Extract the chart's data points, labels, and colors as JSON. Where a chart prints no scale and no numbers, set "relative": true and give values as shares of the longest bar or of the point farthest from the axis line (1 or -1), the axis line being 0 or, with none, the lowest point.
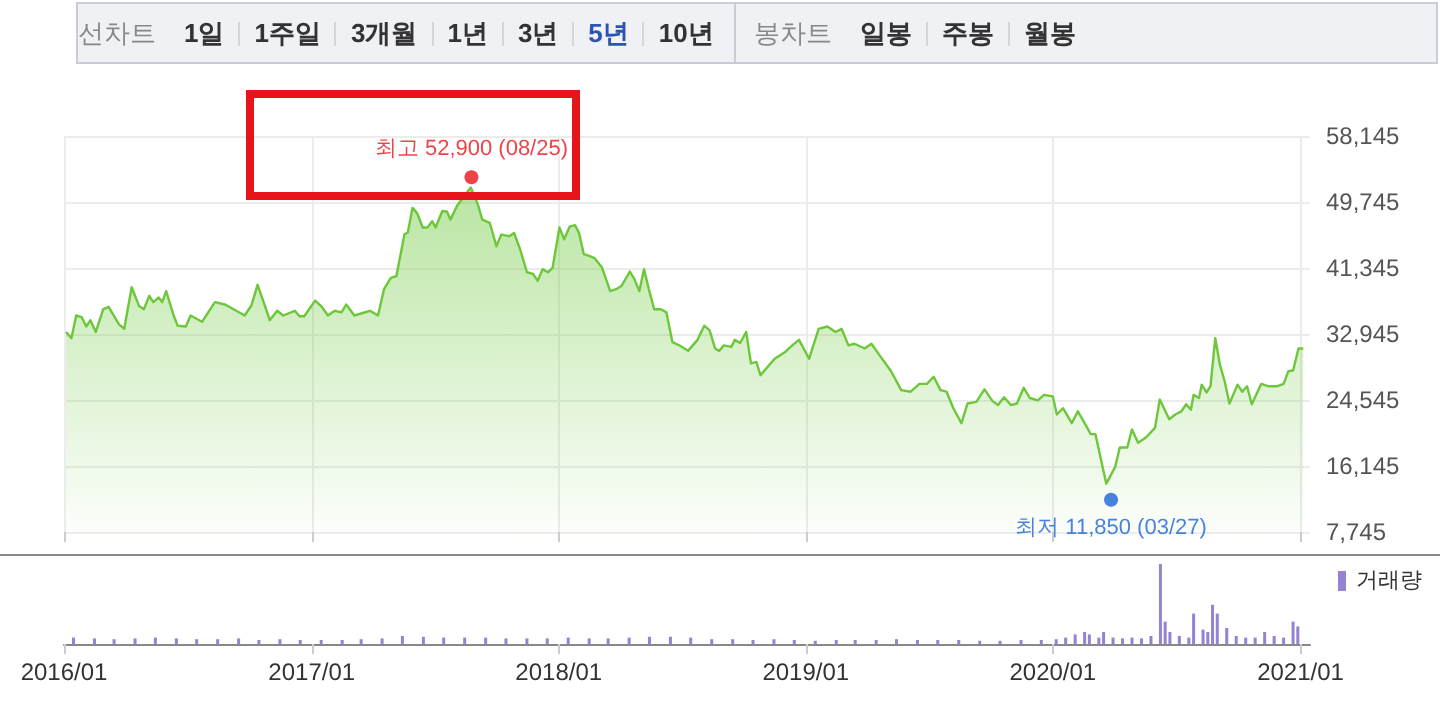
{
  "chart_data": [
    {
      "type": "other",
      "annotations": [
        "선차트",
        "1일",
        "1주일",
        "3개월",
        "1년",
        "3년",
        "5년",
        "10년"
      ],
      "colors": [
        "#888888",
        "#333333",
        "#333333",
        "#333333",
        "#333333",
        "#333333",
        "#2b53b5",
        "#333333"
      ]
    },
    {
      "type": "other",
      "annotations": [
        "봉차트",
        "일봉",
        "주봉",
        "월봉"
      ],
      "colors": [
        "#888888",
        "#333333",
        "#333333",
        "#333333"
      ]
    },
    {
      "type": "area",
      "color": "#6cc83a",
      "grid": true,
      "tick_labels": "y",
      "xlim": [
        "2016-01-01",
        "2021-01-15"
      ],
      "xticks": [
        {
          "value": "2016-01-01",
          "label": null
        },
        {
          "value": "2017-01-01",
          "label": null
        },
        {
          "value": "2018-01-01",
          "label": null
        },
        {
          "value": "2019-01-01",
          "label": null
        },
        {
          "value": "2020-01-01",
          "label": null
        },
        {
          "value": "2021-01-01",
          "label": null
        }
      ],
      "ylim": [
        7745,
        58145
      ],
      "yticks": [
        {
          "value": 7745,
          "label": "7,745"
        },
        {
          "value": 16145,
          "label": "16,145"
        },
        {
          "value": 24545,
          "label": "24,545"
        },
        {
          "value": 32945,
          "label": "32,945"
        },
        {
          "value": 41345,
          "label": "41,345"
        },
        {
          "value": 49745,
          "label": "49,745"
        },
        {
          "value": 58145,
          "label": "58,145"
        }
      ],
      "series": [
        {
          "type": "scatter",
          "x": [
            "2017-08-25",
            "2020-03-27"
          ],
          "values": [
            52900,
            11850
          ],
          "colors": [
            "#e8141c",
            "#1c64d8"
          ],
          "value_labels": [
            "최고 52,900 (08/25)",
            "최저 11,850 (03/27)"
          ]
        }
      ],
      "x": [
        "2016-01-04",
        "2016-01-12",
        "2016-01-19",
        "2016-01-27",
        "2016-02-03",
        "2016-02-09",
        "2016-02-17",
        "2016-02-28",
        "2016-03-07",
        "2016-03-22",
        "2016-03-30",
        "2016-04-10",
        "2016-04-21",
        "2016-04-28",
        "2016-05-06",
        "2016-05-12",
        "2016-05-20",
        "2016-05-25",
        "2016-05-31",
        "2016-06-11",
        "2016-06-17",
        "2016-06-29",
        "2016-07-06",
        "2016-07-23",
        "2016-08-11",
        "2016-08-26",
        "2016-09-24",
        "2016-10-04",
        "2016-10-13",
        "2016-10-22",
        "2016-10-31",
        "2016-11-11",
        "2016-11-20",
        "2016-12-07",
        "2016-12-14",
        "2016-12-21",
        "2017-01-06",
        "2017-01-15",
        "2017-01-25",
        "2017-02-04",
        "2017-02-14",
        "2017-02-21",
        "2017-03-05",
        "2017-03-28",
        "2017-04-09",
        "2017-04-18",
        "2017-04-28",
        "2017-05-06",
        "2017-05-18",
        "2017-05-23",
        "2017-05-30",
        "2017-06-06",
        "2017-06-14",
        "2017-06-21",
        "2017-06-28",
        "2017-07-03",
        "2017-07-13",
        "2017-07-20",
        "2017-07-25",
        "2017-08-04",
        "2017-08-24",
        "2017-08-30",
        "2017-09-04",
        "2017-09-10",
        "2017-09-21",
        "2017-10-01",
        "2017-10-08",
        "2017-10-20",
        "2017-10-27",
        "2017-11-05",
        "2017-11-15",
        "2017-11-24",
        "2017-12-01",
        "2017-12-08",
        "2017-12-16",
        "2017-12-23",
        "2018-01-02",
        "2018-01-09",
        "2018-01-17",
        "2018-01-25",
        "2018-01-31",
        "2018-02-07",
        "2018-02-15",
        "2018-02-23",
        "2018-03-06",
        "2018-03-18",
        "2018-03-28",
        "2018-04-04",
        "2018-04-16",
        "2018-04-23",
        "2018-04-30",
        "2018-05-07",
        "2018-05-14",
        "2018-05-22",
        "2018-06-01",
        "2018-06-09",
        "2018-06-18",
        "2018-06-28",
        "2018-07-11",
        "2018-07-25",
        "2018-08-04",
        "2018-08-12",
        "2018-08-20",
        "2018-08-26",
        "2018-09-02",
        "2018-09-13",
        "2018-09-18",
        "2018-09-26",
        "2018-10-05",
        "2018-10-12",
        "2018-10-20",
        "2018-10-26",
        "2018-11-16",
        "2018-12-02",
        "2018-12-12",
        "2018-12-22",
        "2019-01-06",
        "2019-01-20",
        "2019-02-02",
        "2019-02-14",
        "2019-02-23",
        "2019-03-05",
        "2019-03-14",
        "2019-03-29",
        "2019-04-08",
        "2019-04-22",
        "2019-05-07",
        "2019-05-22",
        "2019-06-05",
        "2019-06-18",
        "2019-06-29",
        "2019-07-09",
        "2019-07-19",
        "2019-07-28",
        "2019-08-07",
        "2019-08-19",
        "2019-08-28",
        "2019-09-10",
        "2019-09-22",
        "2019-10-04",
        "2019-10-12",
        "2019-10-21",
        "2019-10-31",
        "2019-11-09",
        "2019-11-19",
        "2019-11-28",
        "2019-12-10",
        "2019-12-19",
        "2020-01-01",
        "2020-01-07",
        "2020-01-16",
        "2020-01-29",
        "2020-02-07",
        "2020-02-17",
        "2020-02-26",
        "2020-03-04",
        "2020-03-20",
        "2020-04-02",
        "2020-04-09",
        "2020-04-20",
        "2020-04-27",
        "2020-05-06",
        "2020-05-18",
        "2020-05-31",
        "2020-06-07",
        "2020-06-21",
        "2020-06-30",
        "2020-07-09",
        "2020-07-16",
        "2020-07-23",
        "2020-07-27",
        "2020-08-04",
        "2020-08-08",
        "2020-08-15",
        "2020-08-21",
        "2020-08-28",
        "2020-09-04",
        "2020-09-11",
        "2020-09-18",
        "2020-09-30",
        "2020-10-07",
        "2020-10-14",
        "2020-10-21",
        "2020-11-04",
        "2020-11-14",
        "2020-11-28",
        "2020-12-07",
        "2020-12-14",
        "2020-12-21",
        "2020-12-29",
        "2021-01-05"
      ],
      "values": [
        33200,
        32400,
        35300,
        35100,
        33900,
        34700,
        33200,
        36100,
        36400,
        34200,
        33600,
        38900,
        36500,
        36100,
        37800,
        37000,
        37600,
        37000,
        38400,
        35300,
        34000,
        33900,
        35300,
        34500,
        37000,
        36700,
        35300,
        36600,
        39200,
        37000,
        34700,
        35900,
        35300,
        35900,
        35200,
        35200,
        37200,
        36500,
        35300,
        35900,
        35700,
        36700,
        35300,
        35900,
        35300,
        38700,
        40100,
        40300,
        45600,
        45900,
        49000,
        48300,
        46500,
        46500,
        47300,
        46500,
        48600,
        48500,
        47500,
        49300,
        51600,
        50400,
        49300,
        47500,
        47100,
        44100,
        45600,
        45400,
        45800,
        43700,
        40800,
        40600,
        39700,
        41200,
        40800,
        41400,
        46500,
        45000,
        46600,
        46800,
        45800,
        43100,
        42900,
        42600,
        41400,
        38400,
        38700,
        39100,
        40900,
        39900,
        38400,
        41200,
        38700,
        36100,
        36100,
        35700,
        31900,
        31500,
        30800,
        32200,
        34000,
        33400,
        31100,
        30800,
        31500,
        31300,
        32200,
        31800,
        33200,
        29200,
        29400,
        27700,
        29800,
        30700,
        31500,
        32200,
        29800,
        33600,
        33900,
        33200,
        33600,
        31500,
        31700,
        31100,
        31700,
        30000,
        28200,
        25800,
        25600,
        26600,
        26600,
        27500,
        25800,
        25600,
        23500,
        21600,
        24100,
        24300,
        25900,
        24400,
        23900,
        24900,
        23900,
        24100,
        26100,
        24800,
        24500,
        25200,
        25000,
        22700,
        23500,
        21600,
        23100,
        21600,
        20200,
        20200,
        13900,
        16000,
        18500,
        18500,
        20800,
        19100,
        19800,
        21000,
        24600,
        22100,
        22700,
        23100,
        24000,
        23300,
        25200,
        24800,
        26500,
        25500,
        26300,
        32400,
        29000,
        26900,
        24100,
        26500,
        25600,
        26300,
        24000,
        26600,
        26300,
        26300,
        26600,
        28200,
        28300,
        31100,
        31100
      ]
    },
    {
      "type": "bar",
      "relative": true,
      "tick_labels": "x",
      "legend": "top right",
      "xlim": [
        "2016-01-01",
        "2021-01-15"
      ],
      "xticks": [
        {
          "value": "2016-01-01",
          "label": "2016/01"
        },
        {
          "value": "2017-01-01",
          "label": "2017/01"
        },
        {
          "value": "2018-01-01",
          "label": "2018/01"
        },
        {
          "value": "2019-01-01",
          "label": "2019/01"
        },
        {
          "value": "2020-01-01",
          "label": "2020/01"
        },
        {
          "value": "2021-01-01",
          "label": "2021/01"
        }
      ],
      "x": [
        "2016-01-15",
        "2016-02-15",
        "2016-03-15",
        "2016-04-15",
        "2016-05-15",
        "2016-06-15",
        "2016-07-15",
        "2016-08-15",
        "2016-09-15",
        "2016-10-15",
        "2016-11-15",
        "2016-12-15",
        "2017-01-15",
        "2017-02-15",
        "2017-03-15",
        "2017-04-15",
        "2017-05-15",
        "2017-06-15",
        "2017-07-15",
        "2017-08-15",
        "2017-09-15",
        "2017-10-15",
        "2017-11-15",
        "2017-12-15",
        "2018-01-15",
        "2018-02-15",
        "2018-03-15",
        "2018-04-15",
        "2018-05-15",
        "2018-06-15",
        "2018-07-15",
        "2018-08-15",
        "2018-09-15",
        "2018-10-15",
        "2018-11-15",
        "2018-12-15",
        "2019-01-15",
        "2019-02-15",
        "2019-03-15",
        "2019-04-15",
        "2019-05-15",
        "2019-06-15",
        "2019-07-15",
        "2019-08-15",
        "2019-09-15",
        "2019-10-15",
        "2019-11-15",
        "2019-12-15",
        "2020-01-06",
        "2020-01-20",
        "2020-02-03",
        "2020-02-17",
        "2020-02-24",
        "2020-03-09",
        "2020-03-16",
        "2020-03-30",
        "2020-04-13",
        "2020-04-27",
        "2020-05-11",
        "2020-05-25",
        "2020-06-08",
        "2020-06-15",
        "2020-06-22",
        "2020-07-06",
        "2020-07-20",
        "2020-07-27",
        "2020-08-10",
        "2020-08-17",
        "2020-08-24",
        "2020-08-31",
        "2020-09-14",
        "2020-09-28",
        "2020-10-12",
        "2020-10-26",
        "2020-11-09",
        "2020-11-23",
        "2020-12-07",
        "2020-12-21",
        "2020-12-28"
      ],
      "series": [
        {
          "name": "거래량",
          "color": "#9682d2",
          "values": [
            0.08,
            0.07,
            0.06,
            0.07,
            0.08,
            0.07,
            0.06,
            0.06,
            0.07,
            0.05,
            0.06,
            0.05,
            0.05,
            0.05,
            0.06,
            0.07,
            0.1,
            0.09,
            0.08,
            0.08,
            0.08,
            0.07,
            0.07,
            0.07,
            0.08,
            0.07,
            0.07,
            0.08,
            0.09,
            0.09,
            0.08,
            0.06,
            0.06,
            0.05,
            0.06,
            0.05,
            0.04,
            0.05,
            0.05,
            0.05,
            0.06,
            0.05,
            0.05,
            0.05,
            0.04,
            0.04,
            0.05,
            0.05,
            0.06,
            0.08,
            0.12,
            0.15,
            0.12,
            0.08,
            0.15,
            0.08,
            0.07,
            0.08,
            0.07,
            0.1,
            1,
            0.28,
            0.15,
            0.1,
            0.08,
            0.38,
            0.18,
            0.15,
            0.49,
            0.38,
            0.2,
            0.1,
            0.08,
            0.08,
            0.15,
            0.1,
            0.08,
            0.28,
            0.22
          ]
        }
      ]
    }
  ]
}
